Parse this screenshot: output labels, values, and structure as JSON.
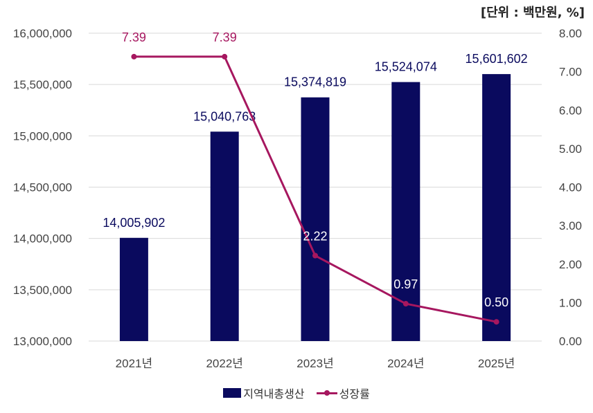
{
  "unit_label": "[단위 : 백만원, %]",
  "colors": {
    "bar": "#0a0a5e",
    "line": "#a6175f",
    "grid": "#d9d9d9",
    "axis_text": "#444444"
  },
  "chart_data": {
    "type": "bar",
    "categories": [
      "2021년",
      "2022년",
      "2023년",
      "2024년",
      "2025년"
    ],
    "series": [
      {
        "name": "지역내총생산",
        "type": "bar",
        "axis": "left",
        "values": [
          14005902,
          15040763,
          15374819,
          15524074,
          15601602
        ]
      },
      {
        "name": "성장률",
        "type": "line",
        "axis": "right",
        "values": [
          7.39,
          7.39,
          2.22,
          0.97,
          0.5
        ]
      }
    ],
    "bar_labels": [
      "14,005,902",
      "15,040,763",
      "15,374,819",
      "15,524,074",
      "15,601,602"
    ],
    "line_labels": [
      "7.39",
      "7.39",
      "2.22",
      "0.97",
      "0.50"
    ],
    "y_left": {
      "min": 13000000,
      "max": 16000000,
      "step": 500000,
      "ticks": [
        "13,000,000",
        "13,500,000",
        "14,000,000",
        "14,500,000",
        "15,000,000",
        "15,500,000",
        "16,000,000"
      ]
    },
    "y_right": {
      "min": 0,
      "max": 8,
      "step": 1,
      "ticks": [
        "0.00",
        "1.00",
        "2.00",
        "3.00",
        "4.00",
        "5.00",
        "6.00",
        "7.00",
        "8.00"
      ]
    },
    "grid": true,
    "legend": "bottom"
  }
}
